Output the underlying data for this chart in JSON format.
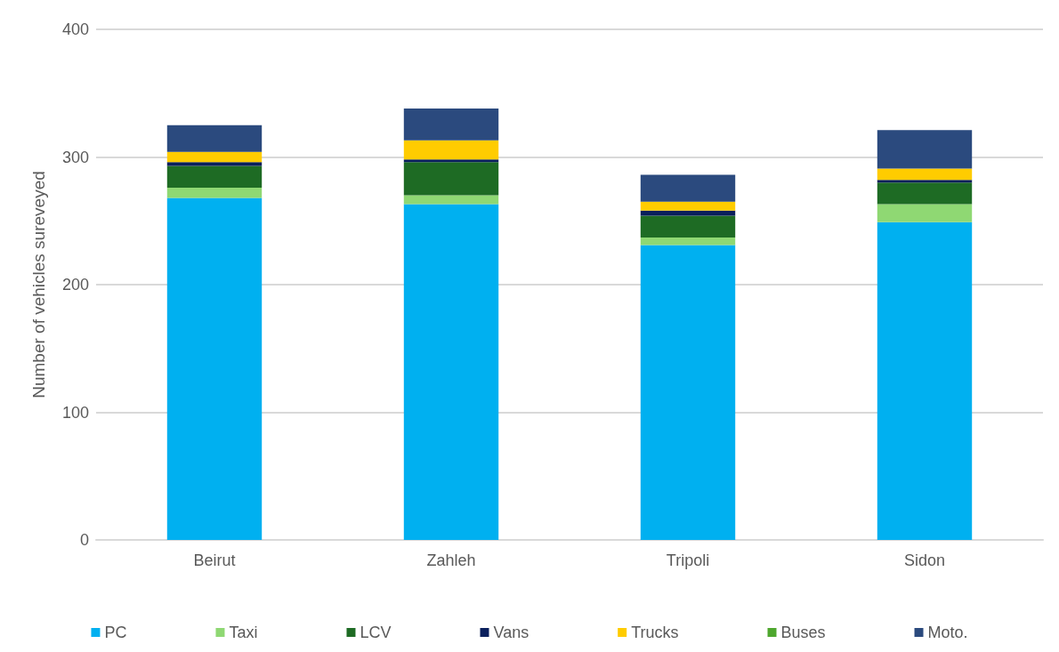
{
  "chart_data": {
    "type": "bar",
    "stacked": true,
    "ylabel": "Number of vehicles sureveyed",
    "categories": [
      "Beirut",
      "Zahleh",
      "Tripoli",
      "Sidon"
    ],
    "series": [
      {
        "name": "PC",
        "color": "#00b0f0",
        "values": [
          268,
          263,
          231,
          249
        ]
      },
      {
        "name": "Taxi",
        "color": "#8fd873",
        "values": [
          8,
          7,
          6,
          14
        ]
      },
      {
        "name": "LCV",
        "color": "#1e6b24",
        "values": [
          17,
          26,
          17,
          17
        ]
      },
      {
        "name": "Vans",
        "color": "#0a1f5c",
        "values": [
          3,
          2,
          4,
          2
        ]
      },
      {
        "name": "Trucks",
        "color": "#ffcc00",
        "values": [
          8,
          15,
          7,
          9
        ]
      },
      {
        "name": "Buses",
        "color": "#4ea72e",
        "values": [
          0,
          0,
          0,
          0
        ]
      },
      {
        "name": "Moto.",
        "color": "#2b4a7e",
        "values": [
          21,
          25,
          21,
          30
        ]
      }
    ],
    "ylim": [
      0,
      400
    ],
    "yticks": [
      0,
      100,
      200,
      300,
      400
    ],
    "grid": "y",
    "legend": "bottom"
  }
}
